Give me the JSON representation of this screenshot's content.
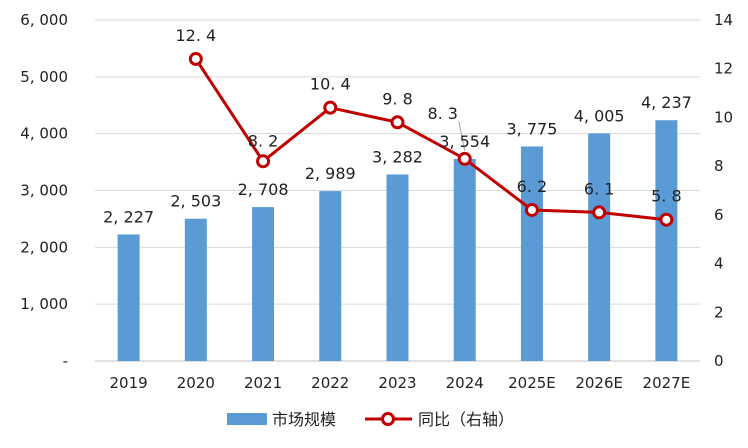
{
  "chart_data": {
    "type": "bar",
    "categories": [
      "2019",
      "2020",
      "2021",
      "2022",
      "2023",
      "2024",
      "2025E",
      "2026E",
      "2027E"
    ],
    "series": [
      {
        "name": "市场规模",
        "kind": "bar",
        "axis": "left",
        "color": "#5b9bd5",
        "values": [
          2227,
          2503,
          2708,
          2989,
          3282,
          3554,
          3775,
          4005,
          4237
        ],
        "labels": [
          "2, 227",
          "2, 503",
          "2, 708",
          "2, 989",
          "3, 282",
          "3, 554",
          "3, 775",
          "4, 005",
          "4, 237"
        ]
      },
      {
        "name": "同比（右轴）",
        "kind": "line",
        "axis": "right",
        "color": "#c00000",
        "values": [
          null,
          12.4,
          8.2,
          10.4,
          9.8,
          8.3,
          6.2,
          6.1,
          5.8
        ],
        "labels": [
          "",
          "12. 4",
          "8. 2",
          "10. 4",
          "9. 8",
          "8. 3",
          "6. 2",
          "6. 1",
          "5. 8"
        ]
      }
    ],
    "y_left": {
      "ylim": [
        0,
        6000
      ],
      "ticks": [
        0,
        1000,
        2000,
        3000,
        4000,
        5000,
        6000
      ],
      "tick_labels": [
        "-",
        "1, 000",
        "2, 000",
        "3, 000",
        "4, 000",
        "5, 000",
        "6, 000"
      ]
    },
    "y_right": {
      "ylim": [
        0,
        14
      ],
      "ticks": [
        0,
        2,
        4,
        6,
        8,
        10,
        12,
        14
      ],
      "tick_labels": [
        "0",
        "2",
        "4",
        "6",
        "8",
        "10",
        "12",
        "14"
      ]
    },
    "grid": true,
    "legend": "bottom"
  }
}
